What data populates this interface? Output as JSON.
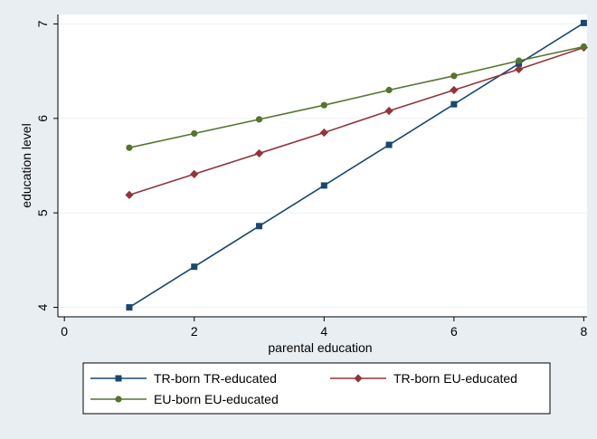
{
  "chart_data": {
    "type": "line",
    "title": "",
    "xlabel": "parental education",
    "ylabel": "education level",
    "xlim": [
      -0.1,
      8.05
    ],
    "ylim": [
      3.9,
      7.1
    ],
    "xticks": [
      0,
      2,
      4,
      6,
      8
    ],
    "yticks": [
      4,
      5,
      6,
      7
    ],
    "xtick_labels": [
      "0",
      "2",
      "4",
      "6",
      "8"
    ],
    "ytick_labels": [
      "4",
      "5",
      "6",
      "7"
    ],
    "grid": "horizontal",
    "legend_position": "bottom",
    "x": [
      1,
      2,
      3,
      4,
      5,
      6,
      7,
      8
    ],
    "series": [
      {
        "name": "TR-born TR-educated",
        "color": "#1a476f",
        "marker": "square",
        "values": [
          4.0,
          4.43,
          4.86,
          5.29,
          5.72,
          6.15,
          6.58,
          7.01
        ]
      },
      {
        "name": "TR-born EU-educated",
        "color": "#90353b",
        "marker": "diamond",
        "values": [
          5.19,
          5.41,
          5.63,
          5.85,
          6.08,
          6.3,
          6.52,
          6.75
        ]
      },
      {
        "name": "EU-born EU-educated",
        "color": "#55752f",
        "marker": "circle",
        "values": [
          5.69,
          5.84,
          5.99,
          6.14,
          6.3,
          6.45,
          6.61,
          6.76
        ]
      }
    ]
  }
}
